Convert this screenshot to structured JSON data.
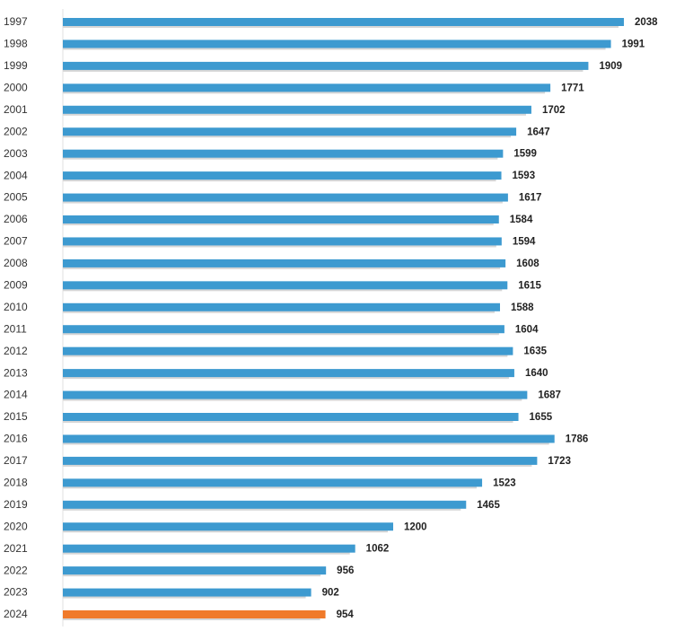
{
  "chart_data": {
    "type": "hbar",
    "categories": [
      "1997",
      "1998",
      "1999",
      "2000",
      "2001",
      "2002",
      "2003",
      "2004",
      "2005",
      "2006",
      "2007",
      "2008",
      "2009",
      "2010",
      "2011",
      "2012",
      "2013",
      "2014",
      "2015",
      "2016",
      "2017",
      "2018",
      "2019",
      "2020",
      "2021",
      "2022",
      "2023",
      "2024"
    ],
    "values": [
      2038,
      1991,
      1909,
      1771,
      1702,
      1647,
      1599,
      1593,
      1617,
      1584,
      1594,
      1608,
      1615,
      1588,
      1604,
      1635,
      1640,
      1687,
      1655,
      1786,
      1723,
      1523,
      1465,
      1200,
      1062,
      956,
      902,
      954
    ],
    "colors": [
      "#3d9ad0",
      "#3d9ad0",
      "#3d9ad0",
      "#3d9ad0",
      "#3d9ad0",
      "#3d9ad0",
      "#3d9ad0",
      "#3d9ad0",
      "#3d9ad0",
      "#3d9ad0",
      "#3d9ad0",
      "#3d9ad0",
      "#3d9ad0",
      "#3d9ad0",
      "#3d9ad0",
      "#3d9ad0",
      "#3d9ad0",
      "#3d9ad0",
      "#3d9ad0",
      "#3d9ad0",
      "#3d9ad0",
      "#3d9ad0",
      "#3d9ad0",
      "#3d9ad0",
      "#3d9ad0",
      "#3d9ad0",
      "#3d9ad0",
      "#f07a2a"
    ]
  }
}
